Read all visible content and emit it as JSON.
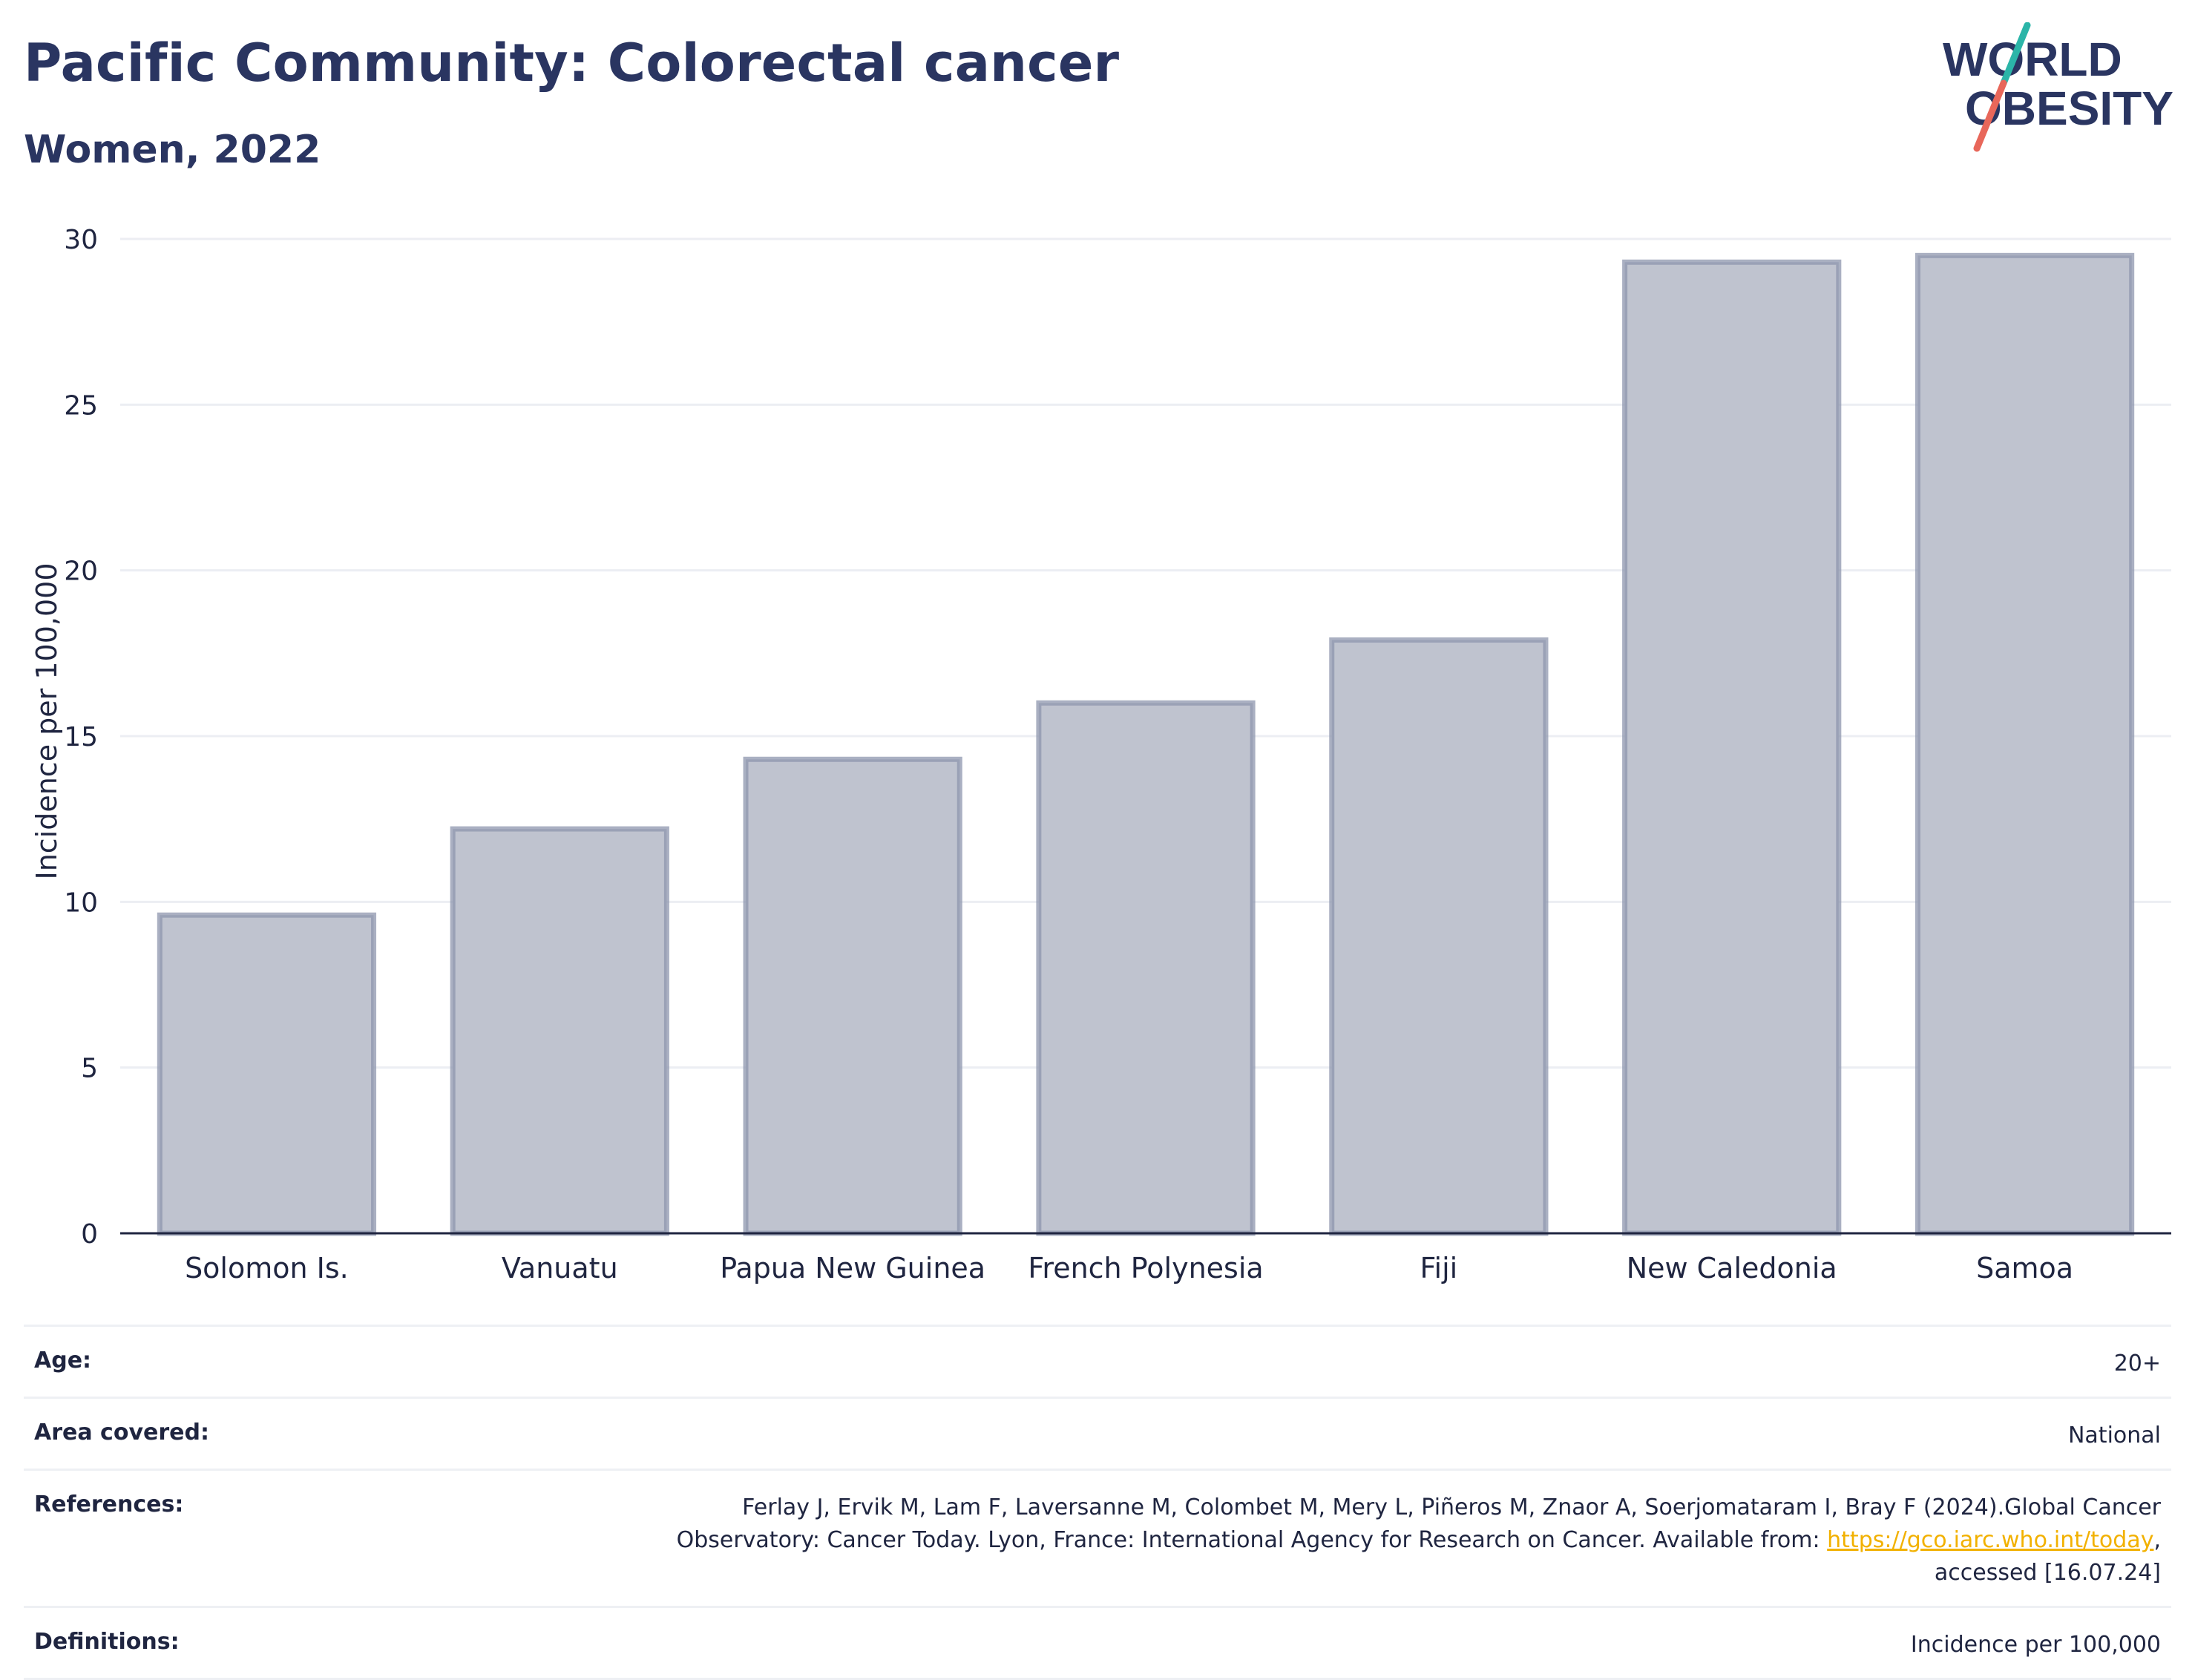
{
  "header": {
    "title": "Pacific Community: Colorectal cancer",
    "subtitle": "Women, 2022"
  },
  "logo": {
    "line1": "WORLD",
    "line2": "OBESITY",
    "text_color": "#2a3561",
    "slash_colors": [
      "#2bb5a8",
      "#e8675a"
    ]
  },
  "chart_data": {
    "type": "bar",
    "categories": [
      "Solomon Is.",
      "Vanuatu",
      "Papua New Guinea",
      "French Polynesia",
      "Fiji",
      "New Caledonia",
      "Samoa"
    ],
    "values": [
      9.6,
      12.2,
      14.3,
      16.0,
      17.9,
      29.3,
      29.5
    ],
    "ylabel": "Incidence per 100,000",
    "xlabel": "",
    "ylim": [
      0,
      30
    ],
    "yticks": [
      0,
      5,
      10,
      15,
      20,
      25,
      30
    ],
    "grid": true,
    "bar_fill": "#bfc3cf",
    "bar_stroke": "#8e95ad"
  },
  "info": {
    "age_label": "Age:",
    "age_value": "20+",
    "area_label": "Area covered:",
    "area_value": "National",
    "references_label": "References:",
    "references_line1": "Ferlay J, Ervik M, Lam F, Laversanne M, Colombet M, Mery L, Piñeros M, Znaor A, Soerjomataram I, Bray F (2024).Global Cancer",
    "references_line2_pre": "Observatory: Cancer Today. Lyon, France: International Agency for Research on Cancer. Available from: ",
    "references_link": "https://gco.iarc.who.int/today",
    "references_line2_post": ",",
    "references_line3": "accessed [16.07.24]",
    "definitions_label": "Definitions:",
    "definitions_value": "Incidence per 100,000"
  }
}
